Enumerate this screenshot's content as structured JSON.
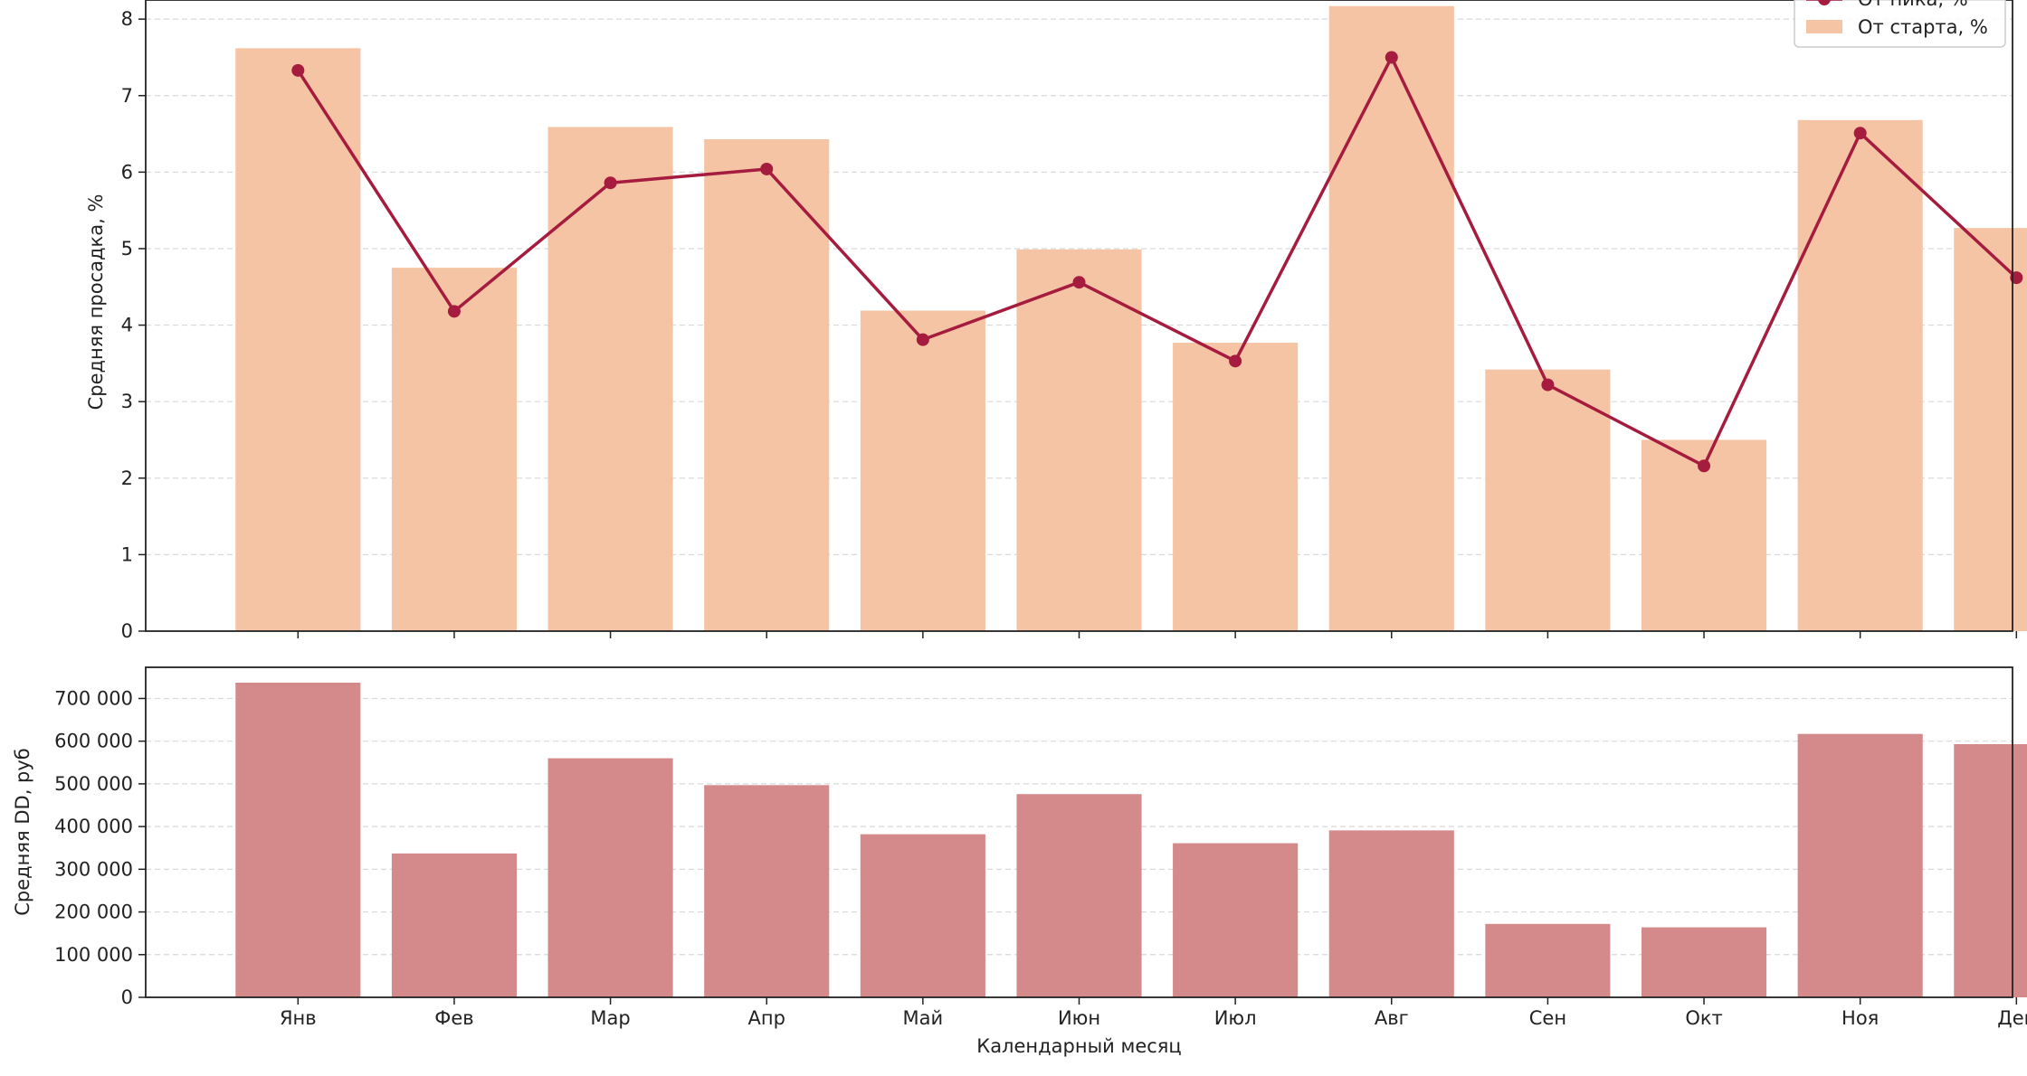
{
  "chart_data": [
    {
      "type": "bar",
      "title": "",
      "xlabel": "",
      "ylabel": "Средняя просадка, %",
      "categories": [
        "Янв",
        "Фев",
        "Мар",
        "Апр",
        "Май",
        "Июн",
        "Июл",
        "Авг",
        "Сен",
        "Окт",
        "Ноя",
        "Дек"
      ],
      "ylim": [
        0,
        8.25
      ],
      "yticks": [
        "0",
        "1",
        "2",
        "3",
        "4",
        "5",
        "6",
        "7",
        "8"
      ],
      "grid": true,
      "legend_position": "top-right",
      "series": [
        {
          "name": "От пика, %",
          "type": "line",
          "color": "#a51c3f",
          "values": [
            7.33,
            4.18,
            5.86,
            6.04,
            3.81,
            4.56,
            3.53,
            7.5,
            3.22,
            2.16,
            6.51,
            4.62
          ]
        },
        {
          "name": "От старта, %",
          "type": "bar",
          "color": "#f5c4a4",
          "values": [
            7.62,
            4.75,
            6.59,
            6.43,
            4.19,
            4.99,
            3.77,
            8.17,
            3.42,
            2.5,
            6.68,
            5.27
          ]
        }
      ]
    },
    {
      "type": "bar",
      "title": "",
      "xlabel": "Календарный месяц",
      "ylabel": "Средняя DD, руб",
      "categories": [
        "Янв",
        "Фев",
        "Мар",
        "Апр",
        "Май",
        "Июн",
        "Июл",
        "Авг",
        "Сен",
        "Окт",
        "Ноя",
        "Дек"
      ],
      "ylim": [
        0,
        773000
      ],
      "yticks": [
        "0",
        "100 000",
        "200 000",
        "300 000",
        "400 000",
        "500 000",
        "600 000",
        "700 000"
      ],
      "grid": true,
      "series": [
        {
          "name": "",
          "type": "bar",
          "color": "#d48a8b",
          "values": [
            737000,
            337000,
            560000,
            497000,
            382000,
            476000,
            361000,
            391000,
            172000,
            164000,
            617000,
            593000
          ]
        }
      ]
    }
  ]
}
